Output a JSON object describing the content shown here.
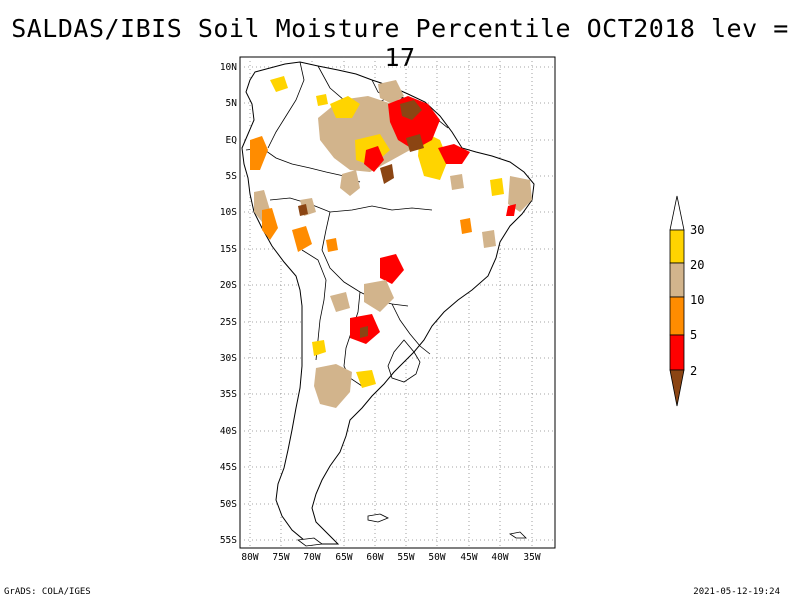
{
  "title": "SALDAS/IBIS Soil Moisture Percentile OCT2018 lev = 17",
  "footer": {
    "left": "GrADS: COLA/IGES",
    "right": "2021-05-12-19:24"
  },
  "map": {
    "region": "South America",
    "lat_labels": [
      "10N",
      "5N",
      "EQ",
      "5S",
      "10S",
      "15S",
      "20S",
      "25S",
      "30S",
      "35S",
      "40S",
      "45S",
      "50S",
      "55S"
    ],
    "lon_labels": [
      "80W",
      "75W",
      "70W",
      "65W",
      "60W",
      "55W",
      "50W",
      "45W",
      "40W",
      "35W"
    ],
    "grid": "dotted"
  },
  "colorbar": {
    "labels": [
      "30",
      "20",
      "10",
      "5",
      "2"
    ],
    "colors": {
      "above_30": "#ffffff",
      "20_30": "#ffd400",
      "10_20": "#d2b48c",
      "5_10": "#ff8c00",
      "2_5": "#ff0000",
      "below_2": "#8b4513"
    }
  }
}
